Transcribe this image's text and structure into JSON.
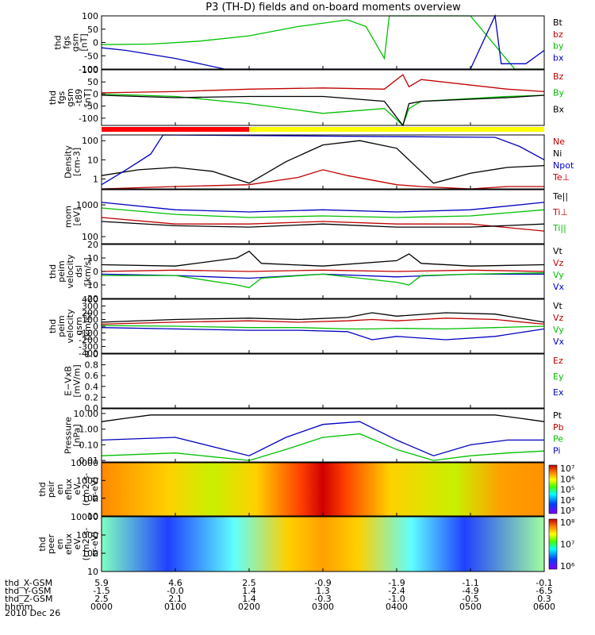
{
  "title": "P3 (TH-D) fields and on-board moments overview",
  "date_label": "2010 Dec 26",
  "chart_data": [
    {
      "type": "line",
      "ylabel": [
        "thd",
        "fgs",
        "gsm",
        "[nT]"
      ],
      "yrange": [
        -100,
        100
      ],
      "ticks": [
        "100",
        "50",
        "0",
        "-50",
        "-100"
      ],
      "legend": [
        {
          "label": "Bt",
          "color": "#000000"
        },
        {
          "label": "bz",
          "color": "#c00000"
        },
        {
          "label": "by",
          "color": "#00c000"
        },
        {
          "label": "bx",
          "color": "#0000c0"
        }
      ],
      "series": [
        {
          "name": "by",
          "color": "#00c000",
          "x": [
            0,
            40,
            80,
            120,
            160,
            200,
            215,
            230,
            234,
            300,
            336,
            360
          ],
          "y": [
            -8,
            -6,
            5,
            25,
            60,
            85,
            60,
            -60,
            100,
            100,
            -100,
            -100
          ]
        },
        {
          "name": "bx",
          "color": "#0000c0",
          "x": [
            0,
            20,
            60,
            100,
            130,
            150,
            200,
            300,
            320,
            325,
            345,
            360
          ],
          "y": [
            -20,
            -30,
            -60,
            -100,
            -100,
            -100,
            -100,
            -100,
            100,
            -80,
            -80,
            -30
          ]
        }
      ]
    },
    {
      "type": "line",
      "ylabel": [
        "thd",
        "fgs",
        "gsm",
        "-t89",
        "[nT]"
      ],
      "yrange": [
        -130,
        100
      ],
      "ticks": [
        "100",
        "50",
        "0",
        "-50",
        "-100"
      ],
      "legend": [
        {
          "label": "Bz",
          "color": "#c00000"
        },
        {
          "label": "By",
          "color": "#00c000"
        },
        {
          "label": "Bx",
          "color": "#000000"
        }
      ],
      "series": [
        {
          "name": "Bz",
          "color": "#c00000",
          "x": [
            0,
            60,
            120,
            180,
            230,
            245,
            250,
            260,
            330,
            360
          ],
          "y": [
            5,
            10,
            20,
            25,
            20,
            80,
            30,
            60,
            20,
            10
          ]
        },
        {
          "name": "By",
          "color": "#00c000",
          "x": [
            0,
            60,
            120,
            180,
            230,
            245,
            250,
            260,
            330,
            360
          ],
          "y": [
            0,
            -10,
            -40,
            -80,
            -60,
            -130,
            -60,
            -30,
            -10,
            -5
          ]
        },
        {
          "name": "Bx",
          "color": "#000000",
          "x": [
            0,
            60,
            120,
            180,
            230,
            245,
            250,
            260,
            330,
            360
          ],
          "y": [
            -5,
            -15,
            -10,
            -10,
            -30,
            -130,
            -40,
            -30,
            -15,
            -5
          ]
        }
      ],
      "bar": [
        {
          "x": [
            0,
            120
          ],
          "color": "#ff0000"
        },
        {
          "x": [
            120,
            360
          ],
          "color": "#ffff00"
        }
      ]
    },
    {
      "type": "line",
      "log": true,
      "ylabel": [
        "Density",
        "[cm-3]"
      ],
      "yrange": [
        0.3,
        200
      ],
      "ticks": [
        "100",
        "10",
        "1"
      ],
      "legend": [
        {
          "label": "Ne",
          "color": "#c00000"
        },
        {
          "label": "Ni",
          "color": "#000000"
        },
        {
          "label": "Npot",
          "color": "#0000c0"
        },
        {
          "label": "Te⊥",
          "color": "#c00000"
        }
      ],
      "series": [
        {
          "name": "Ni",
          "color": "#000000",
          "x": [
            0,
            30,
            60,
            90,
            120,
            150,
            180,
            210,
            240,
            270,
            300,
            330,
            360
          ],
          "y": [
            1.5,
            3,
            4,
            2.5,
            0.6,
            8,
            60,
            100,
            40,
            0.6,
            2,
            4,
            5
          ]
        },
        {
          "name": "Ne",
          "color": "#c00000",
          "x": [
            0,
            60,
            120,
            160,
            180,
            200,
            240,
            260,
            300,
            330,
            360
          ],
          "y": [
            0.3,
            0.4,
            0.5,
            1.2,
            3,
            1.5,
            0.5,
            0.4,
            0.3,
            0.4,
            0.4
          ]
        },
        {
          "name": "Npot",
          "color": "#0000c0",
          "x": [
            0,
            20,
            40,
            50,
            320,
            340,
            360
          ],
          "y": [
            0.5,
            3,
            20,
            200,
            150,
            50,
            10
          ]
        }
      ]
    },
    {
      "type": "line",
      "log": true,
      "ylabel": [
        "mom",
        "[eV]"
      ],
      "yrange": [
        60,
        3000
      ],
      "ticks": [
        "1000",
        "100"
      ],
      "legend": [
        {
          "label": "Te||",
          "color": "#000000"
        },
        {
          "label": "Ti⊥",
          "color": "#c00000"
        },
        {
          "label": "Ti||",
          "color": "#00c000"
        }
      ],
      "series": [
        {
          "name": "Ti⊥",
          "color": "#0000c0",
          "x": [
            0,
            60,
            120,
            180,
            240,
            300,
            360
          ],
          "y": [
            1200,
            700,
            600,
            700,
            600,
            700,
            1200
          ]
        },
        {
          "name": "Ti||",
          "color": "#00c000",
          "x": [
            0,
            60,
            120,
            180,
            240,
            300,
            360
          ],
          "y": [
            800,
            500,
            400,
            450,
            400,
            450,
            700
          ]
        },
        {
          "name": "Te⊥",
          "color": "#c00000",
          "x": [
            0,
            60,
            120,
            180,
            240,
            300,
            360
          ],
          "y": [
            400,
            250,
            250,
            300,
            250,
            250,
            150
          ]
        },
        {
          "name": "Te||",
          "color": "#000000",
          "x": [
            0,
            60,
            120,
            180,
            240,
            300,
            360
          ],
          "y": [
            300,
            220,
            200,
            250,
            200,
            200,
            250
          ]
        }
      ]
    },
    {
      "type": "line",
      "ylabel": [
        "thd",
        "peim",
        "velocity",
        "dsl",
        "[km/s]"
      ],
      "yrange": [
        -20,
        20
      ],
      "ticks": [
        "20",
        "10",
        "0",
        "-10",
        "-20"
      ],
      "legend": [
        {
          "label": "Vt",
          "color": "#000000"
        },
        {
          "label": "Vz",
          "color": "#c00000"
        },
        {
          "label": "Vy",
          "color": "#00c000"
        },
        {
          "label": "Vx",
          "color": "#0000c0"
        }
      ],
      "series": [
        {
          "name": "Vt",
          "color": "#000000",
          "x": [
            0,
            60,
            110,
            120,
            130,
            180,
            240,
            250,
            260,
            300,
            360
          ],
          "y": [
            5,
            4,
            10,
            15,
            6,
            4,
            8,
            13,
            6,
            4,
            5
          ]
        },
        {
          "name": "Vx",
          "color": "#0000c0",
          "x": [
            0,
            60,
            120,
            180,
            240,
            300,
            360
          ],
          "y": [
            -2,
            -3,
            -5,
            -2,
            -4,
            -2,
            -2
          ]
        },
        {
          "name": "Vy",
          "color": "#00c000",
          "x": [
            0,
            60,
            110,
            120,
            130,
            180,
            240,
            250,
            260,
            300,
            360
          ],
          "y": [
            -3,
            -3,
            -10,
            -12,
            -5,
            -2,
            -8,
            -10,
            -3,
            -2,
            -1
          ]
        },
        {
          "name": "Vz",
          "color": "#c00000",
          "x": [
            0,
            60,
            120,
            180,
            240,
            300,
            360
          ],
          "y": [
            0,
            1,
            0,
            1,
            0,
            1,
            0
          ]
        }
      ]
    },
    {
      "type": "line",
      "ylabel": [
        "thd",
        "peim",
        "velocity",
        "gsm",
        "[km/s]"
      ],
      "yrange": [
        -400,
        400
      ],
      "ticks": [
        "400",
        "300",
        "200",
        "100",
        "0",
        "-100",
        "-200",
        "-300",
        "-400"
      ],
      "legend": [
        {
          "label": "Vt",
          "color": "#000000"
        },
        {
          "label": "Vz",
          "color": "#c00000"
        },
        {
          "label": "Vy",
          "color": "#00c000"
        },
        {
          "label": "Vx",
          "color": "#0000c0"
        }
      ],
      "series": [
        {
          "name": "Vt",
          "color": "#000000",
          "x": [
            0,
            60,
            120,
            160,
            200,
            220,
            240,
            280,
            320,
            360
          ],
          "y": [
            60,
            100,
            120,
            100,
            130,
            200,
            150,
            200,
            180,
            60
          ]
        },
        {
          "name": "Vz",
          "color": "#c00000",
          "x": [
            0,
            60,
            120,
            160,
            200,
            220,
            240,
            280,
            320,
            360
          ],
          "y": [
            30,
            60,
            80,
            60,
            80,
            100,
            80,
            120,
            100,
            30
          ]
        },
        {
          "name": "Vy",
          "color": "#00c000",
          "x": [
            0,
            60,
            120,
            160,
            200,
            220,
            240,
            280,
            320,
            360
          ],
          "y": [
            10,
            0,
            -20,
            -20,
            -40,
            -40,
            -30,
            -40,
            -20,
            0
          ]
        },
        {
          "name": "Vx",
          "color": "#0000c0",
          "x": [
            0,
            60,
            120,
            160,
            200,
            220,
            240,
            280,
            320,
            360
          ],
          "y": [
            -20,
            -40,
            -60,
            -60,
            -80,
            -200,
            -150,
            -200,
            -150,
            -40
          ]
        }
      ]
    },
    {
      "type": "line",
      "ylabel": [
        "E−VxB",
        "[mV/m]"
      ],
      "yrange": [
        0,
        1
      ],
      "ticks": [
        "1.0",
        "0.8",
        "0.6",
        "0.4",
        "0.2",
        "0.0"
      ],
      "legend": [
        {
          "label": "Ez",
          "color": "#c00000"
        },
        {
          "label": "Ey",
          "color": "#00c000"
        },
        {
          "label": "Ex",
          "color": "#0000c0"
        }
      ],
      "series": []
    },
    {
      "type": "line",
      "log": true,
      "ylabel": [
        "Pressure",
        "[nPa]"
      ],
      "yrange": [
        0.008,
        20
      ],
      "ticks": [
        "10.00",
        "1.00",
        "0.10",
        "0.01"
      ],
      "legend": [
        {
          "label": "Pt",
          "color": "#000000"
        },
        {
          "label": "Pb",
          "color": "#c00000"
        },
        {
          "label": "Pe",
          "color": "#00c000"
        },
        {
          "label": "Pi",
          "color": "#0000c0"
        }
      ],
      "series": [
        {
          "name": "Pt",
          "color": "#000000",
          "x": [
            0,
            20,
            40,
            320,
            340,
            360
          ],
          "y": [
            3,
            5,
            8,
            8,
            5,
            3
          ]
        },
        {
          "name": "Pi",
          "color": "#0000c0",
          "x": [
            0,
            60,
            120,
            150,
            180,
            210,
            240,
            270,
            300,
            330,
            360
          ],
          "y": [
            0.2,
            0.3,
            0.02,
            0.3,
            2,
            3,
            0.2,
            0.02,
            0.1,
            0.2,
            0.2
          ]
        },
        {
          "name": "Pe",
          "color": "#00c000",
          "x": [
            0,
            60,
            120,
            150,
            180,
            210,
            240,
            270,
            300,
            330,
            360
          ],
          "y": [
            0.02,
            0.03,
            0.01,
            0.05,
            0.3,
            0.5,
            0.05,
            0.01,
            0.02,
            0.03,
            0.04
          ]
        }
      ]
    },
    {
      "type": "heatmap",
      "ylabel": [
        "thd",
        "peir",
        "en",
        "eflux",
        "eV",
        "(cm2-s-",
        "sr-eV)"
      ],
      "yrange_log": [
        10,
        10000
      ],
      "ticks": [
        "10000",
        "1000",
        "100",
        "10"
      ],
      "colorbar_ticks": [
        "10⁷",
        "10⁶",
        "10⁵",
        "10⁴",
        "10³"
      ]
    },
    {
      "type": "heatmap",
      "ylabel": [
        "thd",
        "peer",
        "en",
        "eflux",
        "eV",
        "(cm2-s-",
        "sr-eV)"
      ],
      "yrange_log": [
        10,
        10000
      ],
      "ticks": [
        "10000",
        "1000",
        "100",
        "10"
      ],
      "colorbar_ticks": [
        "10⁸",
        "10⁷",
        "10⁶"
      ]
    }
  ],
  "footer": {
    "labels": [
      "thd_X-GSM",
      "thd_Y-GSM",
      "thd_Z-GSM",
      "hhmm"
    ],
    "columns": [
      [
        "5.9",
        "-1.5",
        "2.5",
        "0000"
      ],
      [
        "4.6",
        "-0.0",
        "2.1",
        "0100"
      ],
      [
        "2.5",
        "1.4",
        "1.4",
        "0200"
      ],
      [
        "-0.9",
        "1.3",
        "-0.3",
        "0300"
      ],
      [
        "-1.9",
        "-2.4",
        "-1.0",
        "0400"
      ],
      [
        "-1.1",
        "-4.9",
        "-0.5",
        "0500"
      ],
      [
        "-0.1",
        "-6.5",
        "0.3",
        "0600"
      ]
    ]
  }
}
